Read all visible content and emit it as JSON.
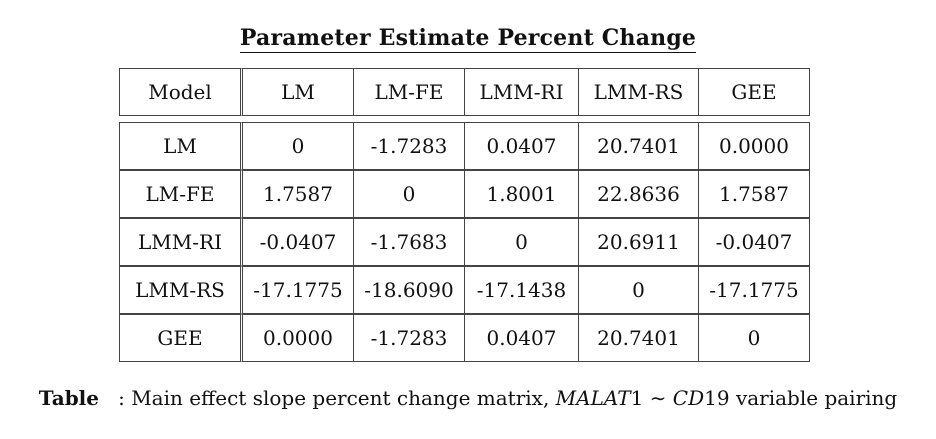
{
  "title": "Parameter Estimate Percent Change",
  "table": {
    "header": [
      "Model",
      "LM",
      "LM-FE",
      "LMM-RI",
      "LMM-RS",
      "GEE"
    ],
    "rows": [
      [
        "LM",
        "0",
        "-1.7283",
        "0.0407",
        "20.7401",
        "0.0000"
      ],
      [
        "LM-FE",
        "1.7587",
        "0",
        "1.8001",
        "22.8636",
        "1.7587"
      ],
      [
        "LMM-RI",
        "-0.0407",
        "-1.7683",
        "0",
        "20.6911",
        "-0.0407"
      ],
      [
        "LMM-RS",
        "-17.1775",
        "-18.6090",
        "-17.1438",
        "0",
        "-17.1775"
      ],
      [
        "GEE",
        "0.0000",
        "-1.7283",
        "0.0407",
        "20.7401",
        "0"
      ]
    ]
  },
  "caption": {
    "label": "Table",
    "separator": ":",
    "text_before": "Main effect slope percent change matrix,",
    "var_a_italic": "MALAT",
    "var_a_num": "1",
    "tilde": "∼",
    "var_b_italic": "CD",
    "var_b_num": "19",
    "text_after": "variable pairing"
  }
}
